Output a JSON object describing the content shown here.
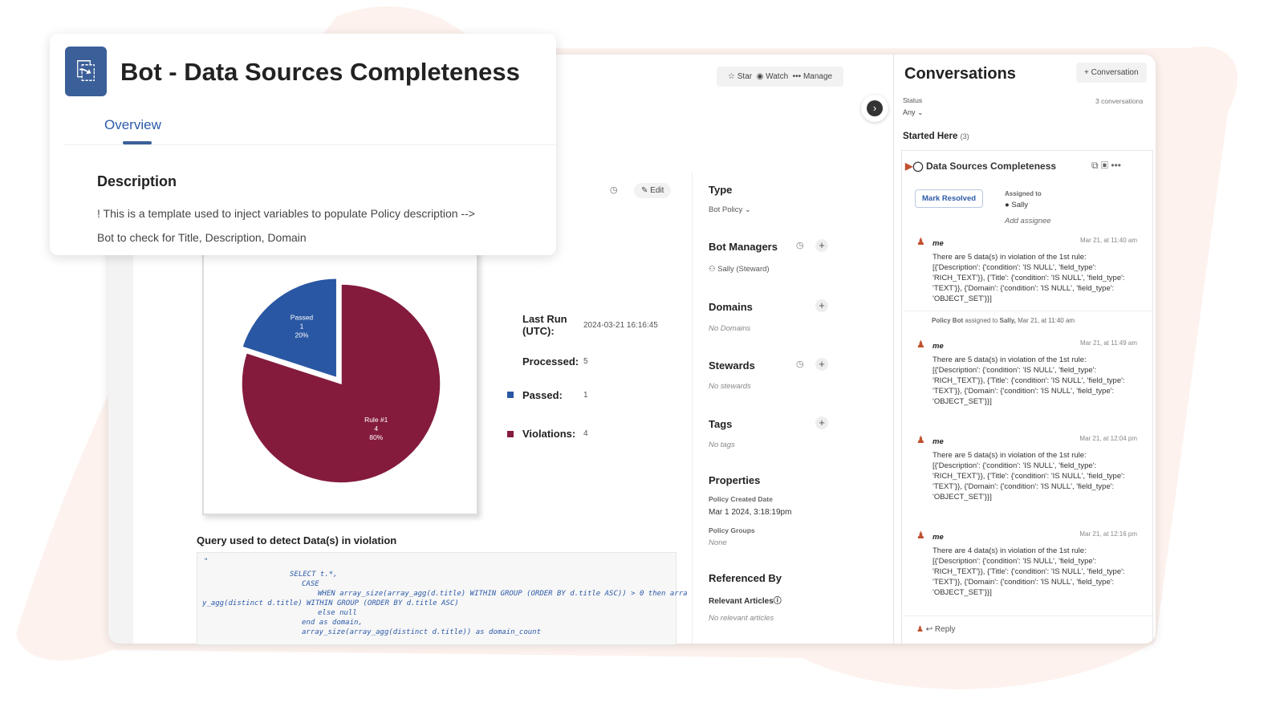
{
  "header": {
    "title": "Bot - Data Sources Completeness",
    "tab": "Overview"
  },
  "description": {
    "heading": "Description",
    "lines": [
      "! This is a template used to inject variables to populate Policy description -->",
      "Bot to check for Title, Description, Domain"
    ]
  },
  "toolbar": {
    "star": "Star",
    "watch": "Watch",
    "manage": "Manage",
    "edit": "Edit"
  },
  "chart_data": {
    "type": "pie",
    "categories": [
      "Passed",
      "Rule #1"
    ],
    "values": [
      1,
      4
    ],
    "value_labels": [
      "20%",
      "80%"
    ],
    "colors": [
      "#2a57a3",
      "#841b3d"
    ]
  },
  "stats": {
    "last_run_label": "Last Run (UTC):",
    "last_run": "2024-03-21 16:16:45",
    "processed_label": "Processed:",
    "processed": 5,
    "passed_label": "Passed:",
    "passed": 1,
    "violations_label": "Violations:",
    "violations": 4
  },
  "query": {
    "heading": "Query used to detect Data(s) in violation",
    "code": [
      "\"",
      "SELECT t.*,",
      "CASE",
      "WHEN array_size(array_agg(d.title) WITHIN GROUP (ORDER BY d.title ASC)) > 0 then arra",
      "y_agg(distinct d.title) WITHIN GROUP (ORDER BY d.title ASC)",
      "else null",
      "end as domain,",
      "array_size(array_agg(distinct d.title)) as domain_count"
    ]
  },
  "sidebar": {
    "type": {
      "heading": "Type",
      "value": "Bot Policy"
    },
    "bot_managers": {
      "heading": "Bot Managers",
      "value": "Sally (Steward)"
    },
    "domains": {
      "heading": "Domains",
      "value": "No Domains"
    },
    "stewards": {
      "heading": "Stewards",
      "value": "No stewards"
    },
    "tags": {
      "heading": "Tags",
      "value": "No tags"
    },
    "properties": {
      "heading": "Properties",
      "created_label": "Policy Created Date",
      "created": "Mar 1 2024, 3:18:19pm",
      "groups_label": "Policy Groups",
      "groups": "None"
    },
    "referenced": {
      "heading": "Referenced By",
      "relevant": "Relevant Articles",
      "value": "No relevant articles"
    }
  },
  "conversations": {
    "title": "Conversations",
    "new": "Conversation",
    "status_label": "Status",
    "status": "Any",
    "count": "3 conversations",
    "started": "Started Here",
    "started_count": "(3)",
    "thread": {
      "title": "Data Sources Completeness",
      "resolve": "Mark Resolved",
      "assigned_label": "Assigned to",
      "assignee": "Sally",
      "add": "Add assignee"
    },
    "messages": [
      {
        "author": "me",
        "time": "Mar 21, at 11:40 am",
        "text": "There are 5 data(s) in violation of the 1st rule: [{'Description': {'condition': 'IS NULL', 'field_type': 'RICH_TEXT'}}, {'Title': {'condition': 'IS NULL', 'field_type': 'TEXT'}}, {'Domain': {'condition': 'IS NULL', 'field_type': 'OBJECT_SET'}}]"
      },
      {
        "author": "me",
        "time": "Mar 21, at 11:49 am",
        "text": "There are 5 data(s) in violation of the 1st rule: [{'Description': {'condition': 'IS NULL', 'field_type': 'RICH_TEXT'}}, {'Title': {'condition': 'IS NULL', 'field_type': 'TEXT'}}, {'Domain': {'condition': 'IS NULL', 'field_type': 'OBJECT_SET'}}]"
      },
      {
        "author": "me",
        "time": "Mar 21, at 12:04 pm",
        "text": "There are 5 data(s) in violation of the 1st rule: [{'Description': {'condition': 'IS NULL', 'field_type': 'RICH_TEXT'}}, {'Title': {'condition': 'IS NULL', 'field_type': 'TEXT'}}, {'Domain': {'condition': 'IS NULL', 'field_type': 'OBJECT_SET'}}]"
      },
      {
        "author": "me",
        "time": "Mar 21, at 12:16 pm",
        "text": "There are 4 data(s) in violation of the 1st rule: [{'Description': {'condition': 'IS NULL', 'field_type': 'RICH_TEXT'}}, {'Title': {'condition': 'IS NULL', 'field_type': 'TEXT'}}, {'Domain': {'condition': 'IS NULL', 'field_type': 'OBJECT_SET'}}]"
      }
    ],
    "event": {
      "actor": "Policy Bot",
      "text": "assigned to",
      "target": "Sally,",
      "time": "Mar 21, at 11:40 am"
    },
    "reply": "Reply"
  }
}
